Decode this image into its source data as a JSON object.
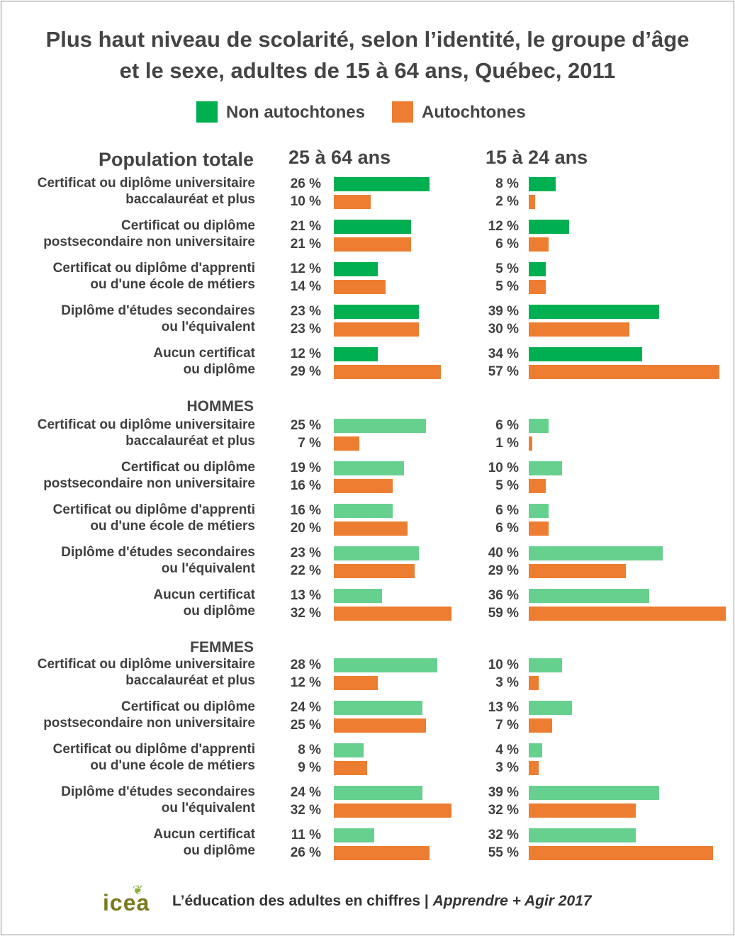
{
  "title_line1": "Plus haut niveau de scolarité, selon l’identité, le groupe d’âge",
  "title_line2": "et le sexe, adultes de 15 à 64 ans, Québec, 2011",
  "footer": {
    "logo": "icea",
    "text_main": "L’éducation des adultes en chiffres | ",
    "text_italic": "Apprendre + Agir 2017"
  },
  "chart_data": {
    "type": "bar",
    "orientation": "horizontal",
    "title": "Plus haut niveau de scolarité, selon l’identité, le groupe d’âge et le sexe, adultes de 15 à 64 ans, Québec, 2011",
    "unit": "%",
    "legend_position": "top",
    "series": [
      {
        "name": "Non autochtones",
        "color": "#00b050",
        "color_light": "#66d08f"
      },
      {
        "name": "Autochtones",
        "color": "#ed7d31"
      }
    ],
    "panes": [
      "25 à 64 ans",
      "15 à 24 ans"
    ],
    "categories": [
      [
        "Certificat ou diplôme universitaire",
        "baccalauréat et plus"
      ],
      [
        "Certificat ou diplôme",
        "postsecondaire non universitaire"
      ],
      [
        "Certificat ou diplôme d'apprenti",
        "ou d'une école de métiers"
      ],
      [
        "Diplôme d'études secondaires",
        "ou l'équivalent"
      ],
      [
        "Aucun certificat",
        "ou diplôme"
      ]
    ],
    "groups": [
      {
        "name": "Population totale",
        "pane_values": [
          {
            "non_autochtones": [
              26,
              21,
              12,
              23,
              12
            ],
            "autochtones": [
              10,
              21,
              14,
              23,
              29
            ]
          },
          {
            "non_autochtones": [
              8,
              12,
              5,
              39,
              34
            ],
            "autochtones": [
              2,
              6,
              5,
              30,
              57
            ]
          }
        ]
      },
      {
        "name": "HOMMES",
        "pane_values": [
          {
            "non_autochtones": [
              25,
              19,
              16,
              23,
              13
            ],
            "autochtones": [
              7,
              16,
              20,
              22,
              32
            ]
          },
          {
            "non_autochtones": [
              6,
              10,
              6,
              40,
              36
            ],
            "autochtones": [
              1,
              5,
              6,
              29,
              59
            ]
          }
        ]
      },
      {
        "name": "FEMMES",
        "pane_values": [
          {
            "non_autochtones": [
              28,
              24,
              8,
              24,
              11
            ],
            "autochtones": [
              12,
              25,
              9,
              32,
              26
            ]
          },
          {
            "non_autochtones": [
              10,
              13,
              4,
              39,
              32
            ],
            "autochtones": [
              3,
              7,
              3,
              32,
              55
            ]
          }
        ]
      }
    ]
  }
}
